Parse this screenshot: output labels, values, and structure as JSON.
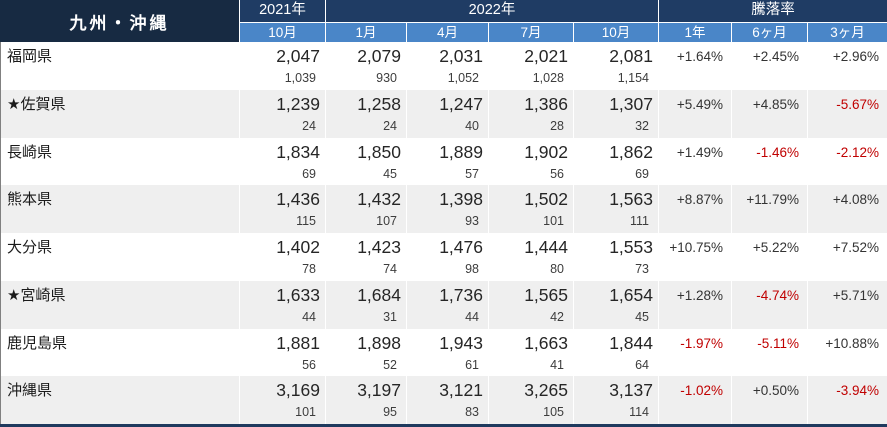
{
  "table": {
    "region_title": "九州・沖縄",
    "year_2021_label": "2021年",
    "year_2022_label": "2022年",
    "rate_group_label": "騰落率",
    "month_headers": [
      "10月",
      "1月",
      "4月",
      "7月",
      "10月"
    ],
    "rate_headers": [
      "1年",
      "6ヶ月",
      "3ヶ月"
    ],
    "rows": [
      {
        "name": "福岡県",
        "main": [
          "2,047",
          "2,079",
          "2,031",
          "2,021",
          "2,081"
        ],
        "sub": [
          "1,039",
          "930",
          "1,052",
          "1,028",
          "1,154"
        ],
        "rates": [
          "+1.64%",
          "+2.45%",
          "+2.96%"
        ]
      },
      {
        "name": "★佐賀県",
        "main": [
          "1,239",
          "1,258",
          "1,247",
          "1,386",
          "1,307"
        ],
        "sub": [
          "24",
          "24",
          "40",
          "28",
          "32"
        ],
        "rates": [
          "+5.49%",
          "+4.85%",
          "-5.67%"
        ]
      },
      {
        "name": "長崎県",
        "main": [
          "1,834",
          "1,850",
          "1,889",
          "1,902",
          "1,862"
        ],
        "sub": [
          "69",
          "45",
          "57",
          "56",
          "69"
        ],
        "rates": [
          "+1.49%",
          "-1.46%",
          "-2.12%"
        ]
      },
      {
        "name": "熊本県",
        "main": [
          "1,436",
          "1,432",
          "1,398",
          "1,502",
          "1,563"
        ],
        "sub": [
          "115",
          "107",
          "93",
          "101",
          "111"
        ],
        "rates": [
          "+8.87%",
          "+11.79%",
          "+4.08%"
        ]
      },
      {
        "name": "大分県",
        "main": [
          "1,402",
          "1,423",
          "1,476",
          "1,444",
          "1,553"
        ],
        "sub": [
          "78",
          "74",
          "98",
          "80",
          "73"
        ],
        "rates": [
          "+10.75%",
          "+5.22%",
          "+7.52%"
        ]
      },
      {
        "name": "★宮崎県",
        "main": [
          "1,633",
          "1,684",
          "1,736",
          "1,565",
          "1,654"
        ],
        "sub": [
          "44",
          "31",
          "44",
          "42",
          "45"
        ],
        "rates": [
          "+1.28%",
          "-4.74%",
          "+5.71%"
        ]
      },
      {
        "name": "鹿児島県",
        "main": [
          "1,881",
          "1,898",
          "1,943",
          "1,663",
          "1,844"
        ],
        "sub": [
          "56",
          "52",
          "61",
          "41",
          "64"
        ],
        "rates": [
          "-1.97%",
          "-5.11%",
          "+10.88%"
        ]
      },
      {
        "name": "沖縄県",
        "main": [
          "3,169",
          "3,197",
          "3,121",
          "3,265",
          "3,137"
        ],
        "sub": [
          "101",
          "95",
          "83",
          "105",
          "114"
        ],
        "rates": [
          "-1.02%",
          "+0.50%",
          "-3.94%"
        ]
      }
    ]
  },
  "colors": {
    "header_dark_navy": "#172A42",
    "header_navy": "#1F3C64",
    "header_blue": "#4A86C8",
    "row_alt_gray": "#EFEFEF",
    "negative_red": "#C00000",
    "bottom_border_navy": "#1F3A5E"
  }
}
